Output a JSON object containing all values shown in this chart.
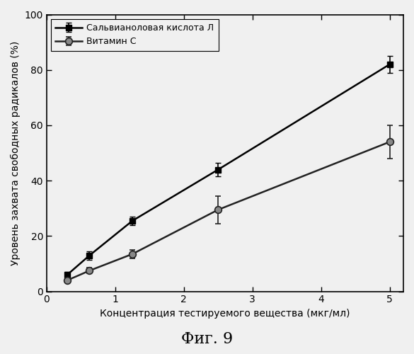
{
  "series1_label": "Сальвианоловая кислота Л",
  "series2_label": "Витамин С",
  "series1_x": [
    0.3,
    0.625,
    1.25,
    2.5,
    5.0
  ],
  "series1_y": [
    6.0,
    13.0,
    25.5,
    44.0,
    82.0
  ],
  "series1_yerr": [
    1.0,
    1.5,
    1.5,
    2.5,
    3.0
  ],
  "series2_x": [
    0.3,
    0.625,
    1.25,
    2.5,
    5.0
  ],
  "series2_y": [
    4.0,
    7.5,
    13.5,
    29.5,
    54.0
  ],
  "series2_yerr": [
    0.8,
    1.0,
    1.5,
    5.0,
    6.0
  ],
  "xlabel": "Концентрация тестируемого вещества (мкг/мл)",
  "ylabel": "Уровень захвата свободных радикалов (%)",
  "title": "Фиг. 9",
  "xlim": [
    0,
    5.2
  ],
  "ylim": [
    0,
    100
  ],
  "xticks": [
    0,
    1,
    2,
    3,
    4,
    5
  ],
  "yticks": [
    0,
    20,
    40,
    60,
    80,
    100
  ],
  "line_color1": "#000000",
  "line_color2": "#222222",
  "series1_marker": "s",
  "series2_marker": "o",
  "marker_size": 6,
  "line_width": 1.8,
  "background_color": "#f0f0f0",
  "legend_loc": "upper left",
  "legend_fontsize": 9,
  "xlabel_fontsize": 10,
  "ylabel_fontsize": 10,
  "tick_fontsize": 10,
  "title_fontsize": 16
}
